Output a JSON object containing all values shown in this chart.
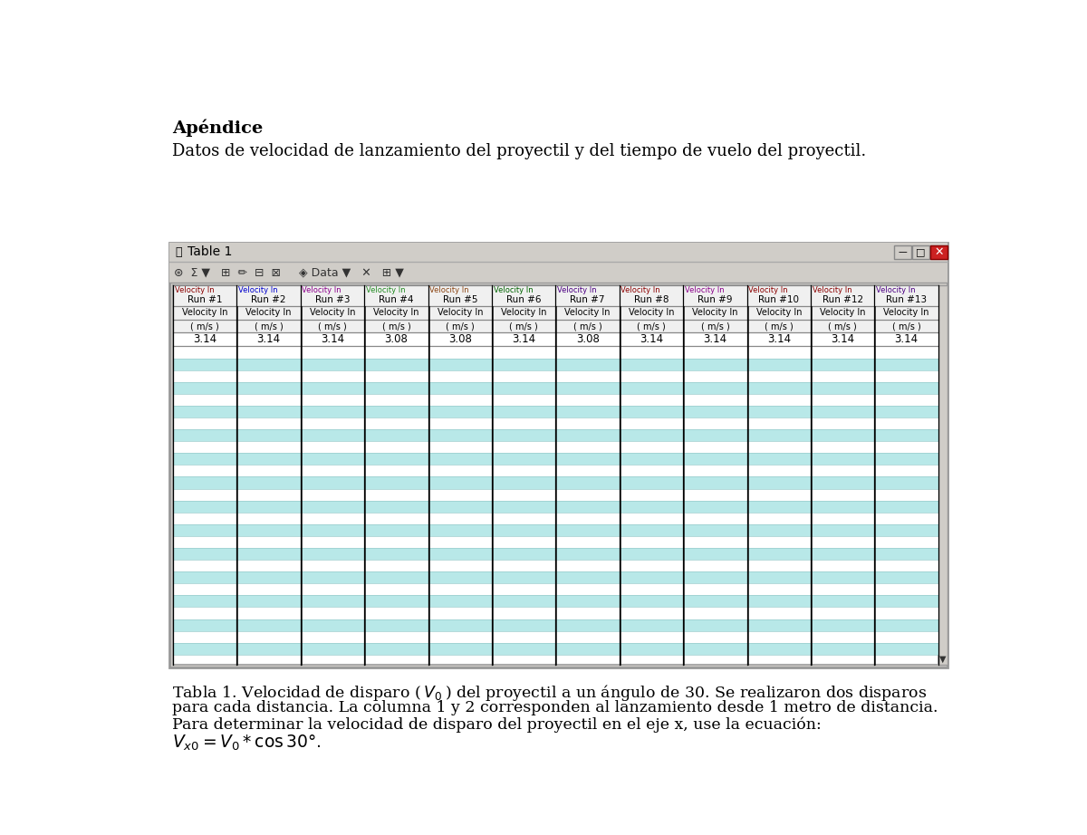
{
  "title_bold": "Apéndice",
  "subtitle": "Datos de velocidad de lanzamiento del proyectil y del tiempo de vuelo del proyectil.",
  "table_title": "Table 1",
  "columns": [
    {
      "run": "Run #1",
      "unit": "( m/s )",
      "value": "3.14",
      "color": "#8B0000"
    },
    {
      "run": "Run #2",
      "unit": "( m/s )",
      "value": "3.14",
      "color": "#0000CD"
    },
    {
      "run": "Run #3",
      "unit": "( m/s )",
      "value": "3.14",
      "color": "#8B008B"
    },
    {
      "run": "Run #4",
      "unit": "( m/s )",
      "value": "3.08",
      "color": "#228B22"
    },
    {
      "run": "Run #5",
      "unit": "( m/s )",
      "value": "3.08",
      "color": "#8B4513"
    },
    {
      "run": "Run #6",
      "unit": "( m/s )",
      "value": "3.14",
      "color": "#006400"
    },
    {
      "run": "Run #7",
      "unit": "( m/s )",
      "value": "3.08",
      "color": "#4B0082"
    },
    {
      "run": "Run #8",
      "unit": "( m/s )",
      "value": "3.14",
      "color": "#8B0000"
    },
    {
      "run": "Run #9",
      "unit": "( m/s )",
      "value": "3.14",
      "color": "#8B008B"
    },
    {
      "run": "Run #10",
      "unit": "( m/s )",
      "value": "3.14",
      "color": "#8B0000"
    },
    {
      "run": "Run #12",
      "unit": "( m/s )",
      "value": "3.14",
      "color": "#8B0000"
    },
    {
      "run": "Run #13",
      "unit": "( m/s )",
      "value": "3.14",
      "color": "#4B0082"
    }
  ],
  "bg_color": "#ffffff",
  "window_gray": "#d0cdc8",
  "stripe_cyan": "#b8e8e8",
  "figure_width": 12.0,
  "figure_height": 9.22
}
